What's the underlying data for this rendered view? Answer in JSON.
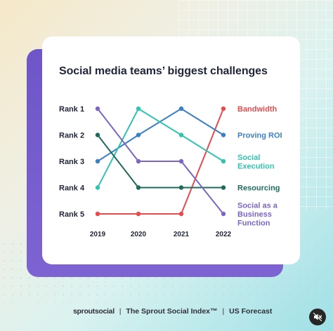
{
  "footer": {
    "brand": "sproutsocial",
    "separator": "|",
    "index": "The Sprout Social Index™",
    "forecast": "US Forecast"
  },
  "controls": {
    "mute_icon": "speaker-muted-icon"
  },
  "colors": {
    "Bandwidth": "#e84a4e",
    "Proving ROI": "#3b7fc4",
    "Social Execution": "#33c3b0",
    "Resourcing": "#1f6b5b",
    "Social as a Business Function": "#7b66c4"
  },
  "chart_data": {
    "type": "line",
    "title": "Social media teams’ biggest challenges",
    "x": [
      "2019",
      "2020",
      "2021",
      "2022"
    ],
    "y_ticks": [
      "Rank 1",
      "Rank 2",
      "Rank 3",
      "Rank 4",
      "Rank 5"
    ],
    "ylim": [
      1,
      5
    ],
    "y_inverted": true,
    "grid": false,
    "legend_position": "right, inline at line ends",
    "series": [
      {
        "name": "Bandwidth",
        "label_lines": [
          "Bandwidth"
        ],
        "values": [
          5,
          5,
          5,
          1
        ]
      },
      {
        "name": "Proving ROI",
        "label_lines": [
          "Proving ROI"
        ],
        "values": [
          3,
          2,
          1,
          2
        ]
      },
      {
        "name": "Social Execution",
        "label_lines": [
          "Social",
          "Execution"
        ],
        "values": [
          4,
          1,
          2,
          3
        ]
      },
      {
        "name": "Resourcing",
        "label_lines": [
          "Resourcing"
        ],
        "values": [
          2,
          4,
          4,
          4
        ]
      },
      {
        "name": "Social as a Business Function",
        "label_lines": [
          "Social as a",
          "Business",
          "Function"
        ],
        "values": [
          1,
          3,
          3,
          5
        ]
      }
    ]
  }
}
